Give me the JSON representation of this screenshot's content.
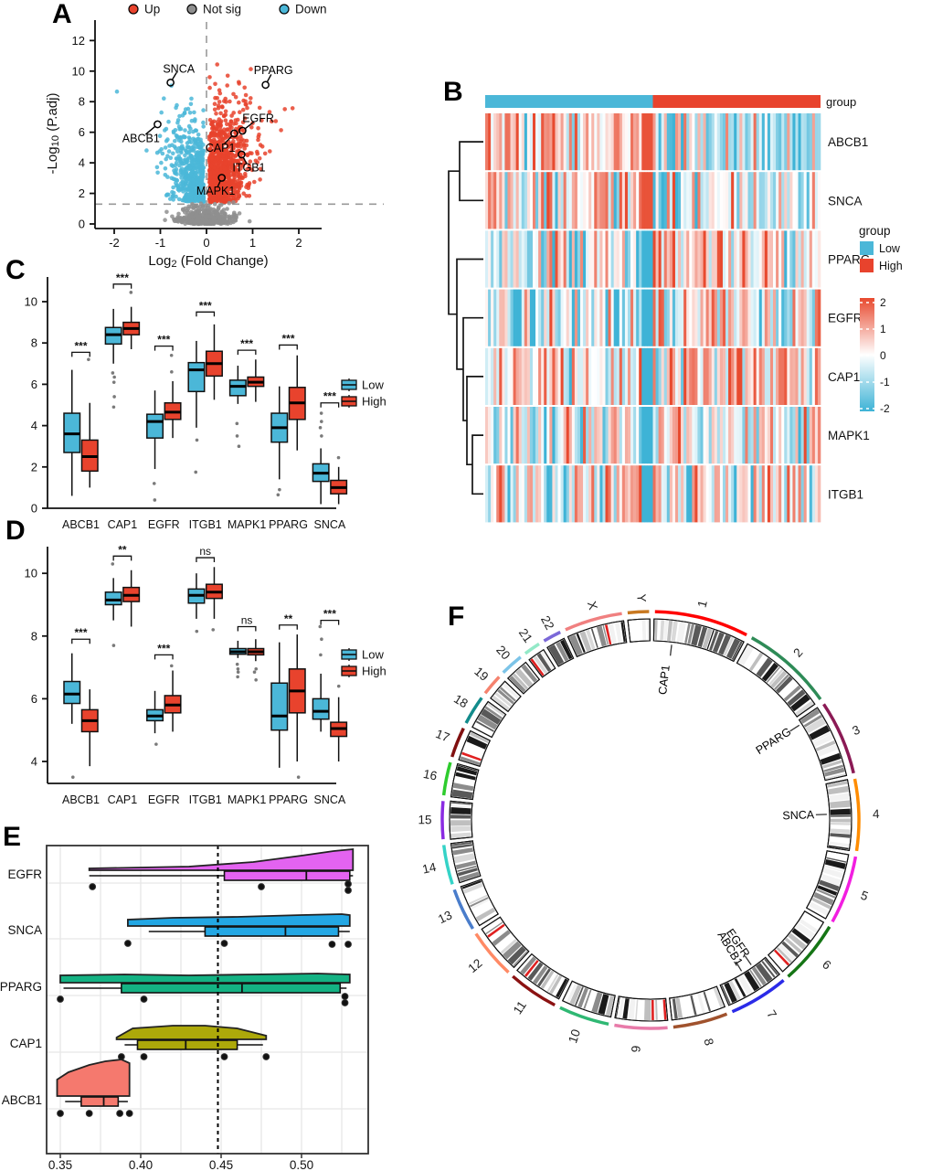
{
  "panel_labels": {
    "A": "A",
    "B": "B",
    "C": "C",
    "D": "D",
    "E": "E",
    "F": "F"
  },
  "chart_data": [
    {
      "panel": "A",
      "type": "scatter",
      "subtype": "volcano",
      "xlabel": {
        "pre": "Log",
        "sub": "2",
        "post": " (Fold Change)"
      },
      "ylabel": {
        "pre": "-Log",
        "sub": "10",
        "post": " (P.adj)"
      },
      "xticks": [
        -2,
        -1,
        0,
        1,
        2
      ],
      "yticks": [
        0,
        2,
        4,
        6,
        8,
        10,
        12
      ],
      "xlim": [
        -2.5,
        2.5
      ],
      "ylim": [
        0,
        13.3
      ],
      "hline": 1.3,
      "vline": 0,
      "legend": [
        {
          "label": "Up",
          "color": "#E8432D"
        },
        {
          "label": "Not sig",
          "color": "#8F8F8F"
        },
        {
          "label": "Down",
          "color": "#4BB7D8"
        }
      ],
      "cloud": {
        "up": {
          "n": 1000,
          "color": "#E8432D"
        },
        "down": {
          "n": 560,
          "color": "#4BB7D8"
        },
        "notsig": {
          "n": 430,
          "color": "#8F8F8F"
        }
      },
      "gene_labels": [
        {
          "gene": "SNCA",
          "px": -0.78,
          "py": 9.25,
          "tx": -0.6,
          "ty": 10.15
        },
        {
          "gene": "PPARG",
          "px": 1.28,
          "py": 9.1,
          "tx": 1.45,
          "ty": 10.05
        },
        {
          "gene": "EGFR",
          "px": 0.78,
          "py": 6.1,
          "tx": 1.12,
          "ty": 6.9
        },
        {
          "gene": "CAP1",
          "px": 0.6,
          "py": 5.92,
          "tx": 0.3,
          "ty": 4.95
        },
        {
          "gene": "ITGB1",
          "px": 0.76,
          "py": 4.55,
          "tx": 0.92,
          "ty": 3.68
        },
        {
          "gene": "MAPK1",
          "px": 0.33,
          "py": 3.02,
          "tx": 0.2,
          "ty": 2.15
        },
        {
          "gene": "ABCB1",
          "px": -1.06,
          "py": 6.52,
          "tx": -1.42,
          "ty": 5.6
        }
      ]
    },
    {
      "panel": "B",
      "type": "heatmap",
      "rows": [
        "ABCB1",
        "SNCA",
        "PPARG",
        "EGFR",
        "CAP1",
        "MAPK1",
        "ITGB1"
      ],
      "n_cols": 120,
      "annotation": {
        "label": "group",
        "groups": [
          {
            "name": "Low",
            "color": "#4BB7D8"
          },
          {
            "name": "High",
            "color": "#E8432D"
          }
        ]
      },
      "legend_title": "group",
      "colorscale": {
        "ticks": [
          2,
          1,
          0,
          -1,
          -2
        ],
        "high": "#E84A2F",
        "mid": "#FFFFFF",
        "low": "#3EB3D6"
      },
      "row_profiles": [
        [
          0.55,
          -0.4
        ],
        [
          0.4,
          -0.3
        ],
        [
          -0.35,
          0.5
        ],
        [
          -0.3,
          0.4
        ],
        [
          0.25,
          0.35
        ],
        [
          -0.05,
          0.2
        ],
        [
          -0.1,
          0.3
        ]
      ],
      "stripe": {
        "cols": [
          56,
          59
        ],
        "red_rows": [
          0,
          1
        ],
        "red_value": 1.9,
        "blue_value": -2
      },
      "dendrogram": [
        "ABCB1",
        "SNCA",
        "PPARG",
        "EGFR",
        "CAP1",
        "MAPK1",
        "ITGB1"
      ]
    },
    {
      "panel": "C",
      "type": "box",
      "categories": [
        "ABCB1",
        "CAP1",
        "EGFR",
        "ITGB1",
        "MAPK1",
        "PPARG",
        "SNCA"
      ],
      "yticks": [
        0,
        2,
        4,
        6,
        8,
        10
      ],
      "legend": [
        {
          "label": "Low",
          "color": "#4BB7D8"
        },
        {
          "label": "High",
          "color": "#E8432D"
        }
      ],
      "series": [
        {
          "name": "Low",
          "color": "#4BB7D8",
          "stats": [
            [
              0.6,
              2.7,
              3.6,
              4.6,
              6.7
            ],
            [
              7.0,
              7.95,
              8.4,
              8.75,
              9.65
            ],
            [
              1.9,
              3.4,
              4.2,
              4.55,
              5.7
            ],
            [
              3.9,
              5.65,
              6.7,
              7.05,
              8.1
            ],
            [
              5.05,
              5.45,
              5.9,
              6.2,
              6.9
            ],
            [
              1.4,
              3.2,
              3.9,
              4.6,
              5.9
            ],
            [
              0.2,
              1.3,
              1.7,
              2.15,
              2.9
            ]
          ],
          "outliers": [
            [],
            [
              6.55,
              6.35,
              6.1,
              5.4,
              4.9
            ],
            [
              1.2,
              0.4
            ],
            [
              3.3,
              1.75
            ],
            [
              4.1,
              3.5,
              3.0
            ],
            [
              0.9,
              0.65
            ],
            [
              4.6,
              4.2,
              3.9,
              3.5
            ]
          ]
        },
        {
          "name": "High",
          "color": "#E8432D",
          "stats": [
            [
              1.0,
              1.8,
              2.5,
              3.3,
              5.1
            ],
            [
              7.7,
              8.4,
              8.7,
              9.0,
              9.75
            ],
            [
              3.4,
              4.3,
              4.65,
              5.1,
              6.15
            ],
            [
              5.25,
              6.4,
              7.0,
              7.6,
              8.9
            ],
            [
              5.15,
              5.9,
              6.1,
              6.35,
              7.2
            ],
            [
              2.8,
              4.3,
              5.1,
              5.85,
              7.4
            ],
            [
              0.2,
              0.7,
              1.0,
              1.35,
              2.0
            ]
          ],
          "outliers": [
            [
              7.2
            ],
            [
              10.45
            ],
            [
              7.4,
              6.6
            ],
            [],
            [],
            [],
            [
              2.45
            ]
          ]
        }
      ],
      "significance": [
        "***",
        "***",
        "***",
        "***",
        "***",
        "***",
        "***"
      ],
      "sig_heights": [
        7.55,
        10.85,
        7.85,
        9.5,
        7.65,
        7.9,
        5.1
      ]
    },
    {
      "panel": "D",
      "type": "box",
      "categories": [
        "ABCB1",
        "CAP1",
        "EGFR",
        "ITGB1",
        "MAPK1",
        "PPARG",
        "SNCA"
      ],
      "yticks": [
        4,
        6,
        8,
        10
      ],
      "legend": [
        {
          "label": "Low",
          "color": "#4BB7D8"
        },
        {
          "label": "High",
          "color": "#E8432D"
        }
      ],
      "series": [
        {
          "name": "Low",
          "color": "#4BB7D8",
          "stats": [
            [
              5.2,
              5.85,
              6.15,
              6.55,
              7.45
            ],
            [
              8.5,
              9.0,
              9.15,
              9.4,
              9.85
            ],
            [
              4.9,
              5.3,
              5.45,
              5.65,
              6.25
            ],
            [
              8.55,
              9.05,
              9.3,
              9.5,
              10.0
            ],
            [
              7.3,
              7.42,
              7.5,
              7.6,
              7.85
            ],
            [
              3.8,
              5.0,
              5.45,
              6.5,
              7.8
            ],
            [
              4.95,
              5.35,
              5.6,
              6.0,
              6.8
            ]
          ],
          "outliers": [
            [
              3.5
            ],
            [
              10.3,
              7.7
            ],
            [
              4.55
            ],
            [
              8.15
            ],
            [
              7.1,
              6.95,
              6.85,
              6.7
            ],
            [],
            [
              8.3,
              7.9,
              7.4
            ]
          ]
        },
        {
          "name": "High",
          "color": "#E8432D",
          "stats": [
            [
              3.85,
              4.95,
              5.3,
              5.65,
              6.3
            ],
            [
              8.3,
              9.1,
              9.3,
              9.55,
              10.1
            ],
            [
              4.95,
              5.55,
              5.8,
              6.1,
              6.9
            ],
            [
              8.55,
              9.2,
              9.4,
              9.65,
              10.2
            ],
            [
              7.2,
              7.4,
              7.5,
              7.6,
              7.9
            ],
            [
              4.0,
              5.55,
              6.25,
              6.95,
              8.05
            ],
            [
              4.0,
              4.8,
              5.05,
              5.25,
              6.05
            ]
          ],
          "outliers": [
            [],
            [],
            [
              7.05
            ],
            [
              8.2
            ],
            [
              6.95,
              6.85,
              6.6
            ],
            [
              3.5
            ],
            [
              6.4
            ]
          ]
        }
      ],
      "significance": [
        "***",
        "**",
        "***",
        "ns",
        "ns",
        "**",
        "***"
      ],
      "sig_heights": [
        7.9,
        10.55,
        7.4,
        10.5,
        8.3,
        8.35,
        8.5
      ]
    },
    {
      "panel": "E",
      "type": "ridge",
      "xticks": [
        0.35,
        0.4,
        0.45,
        0.5
      ],
      "vline": 0.448,
      "rows": [
        {
          "name": "EGFR",
          "color": "#E363F0",
          "density": [
            [
              0.368,
              2
            ],
            [
              0.43,
              4
            ],
            [
              0.47,
              9
            ],
            [
              0.5,
              16
            ],
            [
              0.52,
              21
            ],
            [
              0.532,
              23
            ]
          ],
          "box": [
            0.452,
            0.503,
            0.53
          ],
          "whisker": [
            0.368,
            0.532
          ],
          "dots": [
            [
              0.37,
              0
            ],
            [
              0.475,
              0
            ],
            [
              0.529,
              -3
            ],
            [
              0.529,
              4
            ]
          ]
        },
        {
          "name": "SNCA",
          "color": "#23A7E4",
          "density": [
            [
              0.392,
              7
            ],
            [
              0.42,
              9
            ],
            [
              0.46,
              10
            ],
            [
              0.5,
              12
            ],
            [
              0.525,
              13
            ],
            [
              0.53,
              12
            ]
          ],
          "box": [
            0.44,
            0.49,
            0.523
          ],
          "whisker": [
            0.405,
            0.53
          ],
          "dots": [
            [
              0.392,
              1
            ],
            [
              0.452,
              1
            ],
            [
              0.519,
              2
            ],
            [
              0.529,
              2
            ]
          ]
        },
        {
          "name": "PPARG",
          "color": "#14B283",
          "density": [
            [
              0.35,
              8
            ],
            [
              0.39,
              9
            ],
            [
              0.43,
              8
            ],
            [
              0.47,
              9
            ],
            [
              0.51,
              10
            ],
            [
              0.53,
              9
            ]
          ],
          "box": [
            0.388,
            0.463,
            0.524
          ],
          "whisker": [
            0.352,
            0.528
          ],
          "dots": [
            [
              0.35,
              0
            ],
            [
              0.402,
              0
            ],
            [
              0.527,
              -3
            ],
            [
              0.527,
              4
            ]
          ]
        },
        {
          "name": "CAP1",
          "color": "#ADA90A",
          "density": [
            [
              0.385,
              2
            ],
            [
              0.395,
              12
            ],
            [
              0.42,
              15
            ],
            [
              0.44,
              15
            ],
            [
              0.46,
              12
            ],
            [
              0.478,
              4
            ]
          ],
          "box": [
            0.398,
            0.428,
            0.46
          ],
          "whisker": [
            0.39,
            0.476
          ],
          "dots": [
            [
              0.388,
              1
            ],
            [
              0.402,
              1
            ],
            [
              0.452,
              1
            ],
            [
              0.478,
              1
            ]
          ]
        },
        {
          "name": "ABCB1",
          "color": "#F5796E",
          "density": [
            [
              0.348,
              18
            ],
            [
              0.355,
              26
            ],
            [
              0.368,
              34
            ],
            [
              0.378,
              38
            ],
            [
              0.388,
              40
            ],
            [
              0.393,
              36
            ]
          ],
          "box": [
            0.363,
            0.377,
            0.386
          ],
          "whisker": [
            0.353,
            0.392
          ],
          "dots": [
            [
              0.35,
              1
            ],
            [
              0.368,
              1
            ],
            [
              0.387,
              1
            ],
            [
              0.393,
              1
            ]
          ]
        }
      ]
    },
    {
      "panel": "F",
      "type": "circos",
      "chromosomes": [
        {
          "name": "1",
          "size": 249,
          "color": "#FF0000"
        },
        {
          "name": "2",
          "size": 243,
          "color": "#2E8B57"
        },
        {
          "name": "3",
          "size": 198,
          "color": "#8B1A55"
        },
        {
          "name": "4",
          "size": 190,
          "color": "#FF8C00"
        },
        {
          "name": "5",
          "size": 182,
          "color": "#F21EE0"
        },
        {
          "name": "6",
          "size": 171,
          "color": "#157515"
        },
        {
          "name": "7",
          "size": 159,
          "color": "#2B2BE8"
        },
        {
          "name": "8",
          "size": 146,
          "color": "#A0522D"
        },
        {
          "name": "9",
          "size": 141,
          "color": "#E87BA9"
        },
        {
          "name": "10",
          "size": 136,
          "color": "#2FB873"
        },
        {
          "name": "11",
          "size": 135,
          "color": "#8B1212"
        },
        {
          "name": "12",
          "size": 134,
          "color": "#FF8A65"
        },
        {
          "name": "13",
          "size": 115,
          "color": "#4A7DCB"
        },
        {
          "name": "14",
          "size": 107,
          "color": "#35D3C7"
        },
        {
          "name": "15",
          "size": 102,
          "color": "#8A2BE2"
        },
        {
          "name": "16",
          "size": 90,
          "color": "#2ECC2E"
        },
        {
          "name": "17",
          "size": 83,
          "color": "#801010"
        },
        {
          "name": "18",
          "size": 80,
          "color": "#128B8B"
        },
        {
          "name": "19",
          "size": 59,
          "color": "#F5826E"
        },
        {
          "name": "20",
          "size": 64,
          "color": "#7CC4E8"
        },
        {
          "name": "21",
          "size": 47,
          "color": "#93E9C8"
        },
        {
          "name": "22",
          "size": 51,
          "color": "#7B68D8"
        },
        {
          "name": "X",
          "size": 155,
          "color": "#F08080"
        },
        {
          "name": "Y",
          "size": 59,
          "color": "#C87820"
        }
      ],
      "gene_labels": [
        {
          "gene": "CAP1",
          "chrom": "1",
          "frac": 0.22
        },
        {
          "gene": "PPARG",
          "chrom": "3",
          "frac": 0.07
        },
        {
          "gene": "SNCA",
          "chrom": "4",
          "frac": 0.48
        },
        {
          "gene": "EGFR",
          "chrom": "7",
          "frac": 0.3
        },
        {
          "gene": "ABCB1",
          "chrom": "7",
          "frac": 0.52
        }
      ]
    }
  ]
}
